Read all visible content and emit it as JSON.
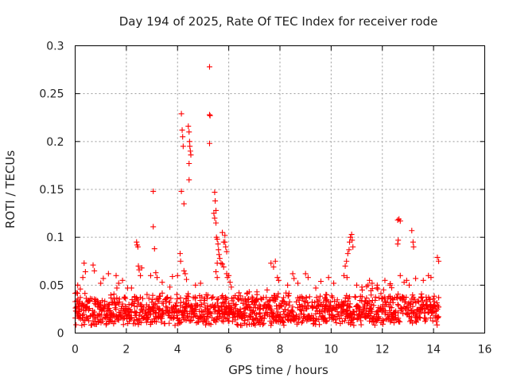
{
  "chart_data": {
    "type": "scatter",
    "title": "Day 194 of 2025, Rate Of TEC Index for receiver rode",
    "xlabel": "GPS time / hours",
    "ylabel": "ROTI / TECUs",
    "xlim": [
      0,
      16
    ],
    "ylim": [
      0,
      0.3
    ],
    "xticks": [
      0,
      2,
      4,
      6,
      8,
      10,
      12,
      14,
      16
    ],
    "xtick_labels": [
      "0",
      "2",
      "4",
      "6",
      "8",
      "10",
      "12",
      "14",
      "16"
    ],
    "yticks": [
      0,
      0.05,
      0.1,
      0.15,
      0.2,
      0.25,
      0.3
    ],
    "ytick_labels": [
      "0",
      "0.05",
      "0.1",
      "0.15",
      "0.2",
      "0.25",
      "0.3"
    ],
    "grid": true,
    "marker": "plus",
    "color": "#ff0000",
    "series": [
      {
        "name": "ROTI",
        "points": [
          [
            0.05,
            0.042
          ],
          [
            0.1,
            0.05
          ],
          [
            0.2,
            0.046
          ],
          [
            0.3,
            0.058
          ],
          [
            0.35,
            0.073
          ],
          [
            0.4,
            0.064
          ],
          [
            0.7,
            0.071
          ],
          [
            0.75,
            0.065
          ],
          [
            1.0,
            0.052
          ],
          [
            1.1,
            0.057
          ],
          [
            1.3,
            0.062
          ],
          [
            1.6,
            0.06
          ],
          [
            1.7,
            0.052
          ],
          [
            1.85,
            0.055
          ],
          [
            2.05,
            0.047
          ],
          [
            2.2,
            0.047
          ],
          [
            2.4,
            0.095
          ],
          [
            2.42,
            0.092
          ],
          [
            2.45,
            0.09
          ],
          [
            2.47,
            0.07
          ],
          [
            2.5,
            0.066
          ],
          [
            2.55,
            0.06
          ],
          [
            2.6,
            0.068
          ],
          [
            2.95,
            0.06
          ],
          [
            3.05,
            0.148
          ],
          [
            3.05,
            0.111
          ],
          [
            3.1,
            0.088
          ],
          [
            3.15,
            0.063
          ],
          [
            3.2,
            0.058
          ],
          [
            3.4,
            0.053
          ],
          [
            3.7,
            0.048
          ],
          [
            3.8,
            0.059
          ],
          [
            4.0,
            0.06
          ],
          [
            4.1,
            0.083
          ],
          [
            4.12,
            0.075
          ],
          [
            4.15,
            0.229
          ],
          [
            4.18,
            0.212
          ],
          [
            4.2,
            0.205
          ],
          [
            4.22,
            0.195
          ],
          [
            4.15,
            0.148
          ],
          [
            4.25,
            0.135
          ],
          [
            4.25,
            0.065
          ],
          [
            4.3,
            0.062
          ],
          [
            4.35,
            0.056
          ],
          [
            4.42,
            0.216
          ],
          [
            4.45,
            0.21
          ],
          [
            4.47,
            0.2
          ],
          [
            4.48,
            0.195
          ],
          [
            4.5,
            0.19
          ],
          [
            4.52,
            0.186
          ],
          [
            4.45,
            0.177
          ],
          [
            4.45,
            0.16
          ],
          [
            4.7,
            0.05
          ],
          [
            4.9,
            0.052
          ],
          [
            5.25,
            0.278
          ],
          [
            5.25,
            0.228
          ],
          [
            5.27,
            0.227
          ],
          [
            5.25,
            0.198
          ],
          [
            5.45,
            0.147
          ],
          [
            5.47,
            0.138
          ],
          [
            5.5,
            0.128
          ],
          [
            5.42,
            0.125
          ],
          [
            5.45,
            0.12
          ],
          [
            5.5,
            0.115
          ],
          [
            5.52,
            0.1
          ],
          [
            5.55,
            0.098
          ],
          [
            5.58,
            0.093
          ],
          [
            5.6,
            0.087
          ],
          [
            5.62,
            0.082
          ],
          [
            5.65,
            0.078
          ],
          [
            5.55,
            0.073
          ],
          [
            5.7,
            0.073
          ],
          [
            5.75,
            0.072
          ],
          [
            5.8,
            0.069
          ],
          [
            5.85,
            0.102
          ],
          [
            5.85,
            0.095
          ],
          [
            5.88,
            0.09
          ],
          [
            5.92,
            0.085
          ],
          [
            5.75,
            0.105
          ],
          [
            5.8,
            0.095
          ],
          [
            5.5,
            0.064
          ],
          [
            5.55,
            0.058
          ],
          [
            5.92,
            0.062
          ],
          [
            5.95,
            0.058
          ],
          [
            6.0,
            0.06
          ],
          [
            6.05,
            0.053
          ],
          [
            6.1,
            0.048
          ],
          [
            6.4,
            0.042
          ],
          [
            6.8,
            0.043
          ],
          [
            7.1,
            0.043
          ],
          [
            7.5,
            0.045
          ],
          [
            7.65,
            0.073
          ],
          [
            7.75,
            0.069
          ],
          [
            7.82,
            0.075
          ],
          [
            7.9,
            0.058
          ],
          [
            7.95,
            0.055
          ],
          [
            8.3,
            0.05
          ],
          [
            8.5,
            0.062
          ],
          [
            8.55,
            0.057
          ],
          [
            8.7,
            0.052
          ],
          [
            9.0,
            0.062
          ],
          [
            9.1,
            0.058
          ],
          [
            9.4,
            0.047
          ],
          [
            9.6,
            0.054
          ],
          [
            9.9,
            0.058
          ],
          [
            10.1,
            0.052
          ],
          [
            10.5,
            0.06
          ],
          [
            10.55,
            0.07
          ],
          [
            10.6,
            0.075
          ],
          [
            10.65,
            0.083
          ],
          [
            10.7,
            0.087
          ],
          [
            10.72,
            0.095
          ],
          [
            10.75,
            0.1
          ],
          [
            10.8,
            0.103
          ],
          [
            10.82,
            0.097
          ],
          [
            10.85,
            0.09
          ],
          [
            10.62,
            0.058
          ],
          [
            11.0,
            0.05
          ],
          [
            11.2,
            0.048
          ],
          [
            11.5,
            0.055
          ],
          [
            11.6,
            0.052
          ],
          [
            11.8,
            0.05
          ],
          [
            12.1,
            0.055
          ],
          [
            12.3,
            0.05
          ],
          [
            12.6,
            0.118
          ],
          [
            12.65,
            0.119
          ],
          [
            12.7,
            0.117
          ],
          [
            12.6,
            0.093
          ],
          [
            12.62,
            0.097
          ],
          [
            12.7,
            0.06
          ],
          [
            12.85,
            0.053
          ],
          [
            12.95,
            0.055
          ],
          [
            13.05,
            0.05
          ],
          [
            13.15,
            0.107
          ],
          [
            13.2,
            0.095
          ],
          [
            13.22,
            0.09
          ],
          [
            13.3,
            0.057
          ],
          [
            13.6,
            0.055
          ],
          [
            13.8,
            0.06
          ],
          [
            13.9,
            0.058
          ],
          [
            14.15,
            0.079
          ],
          [
            14.2,
            0.075
          ],
          [
            14.2,
            0.037
          ],
          [
            14.15,
            0.025
          ]
        ]
      }
    ]
  }
}
